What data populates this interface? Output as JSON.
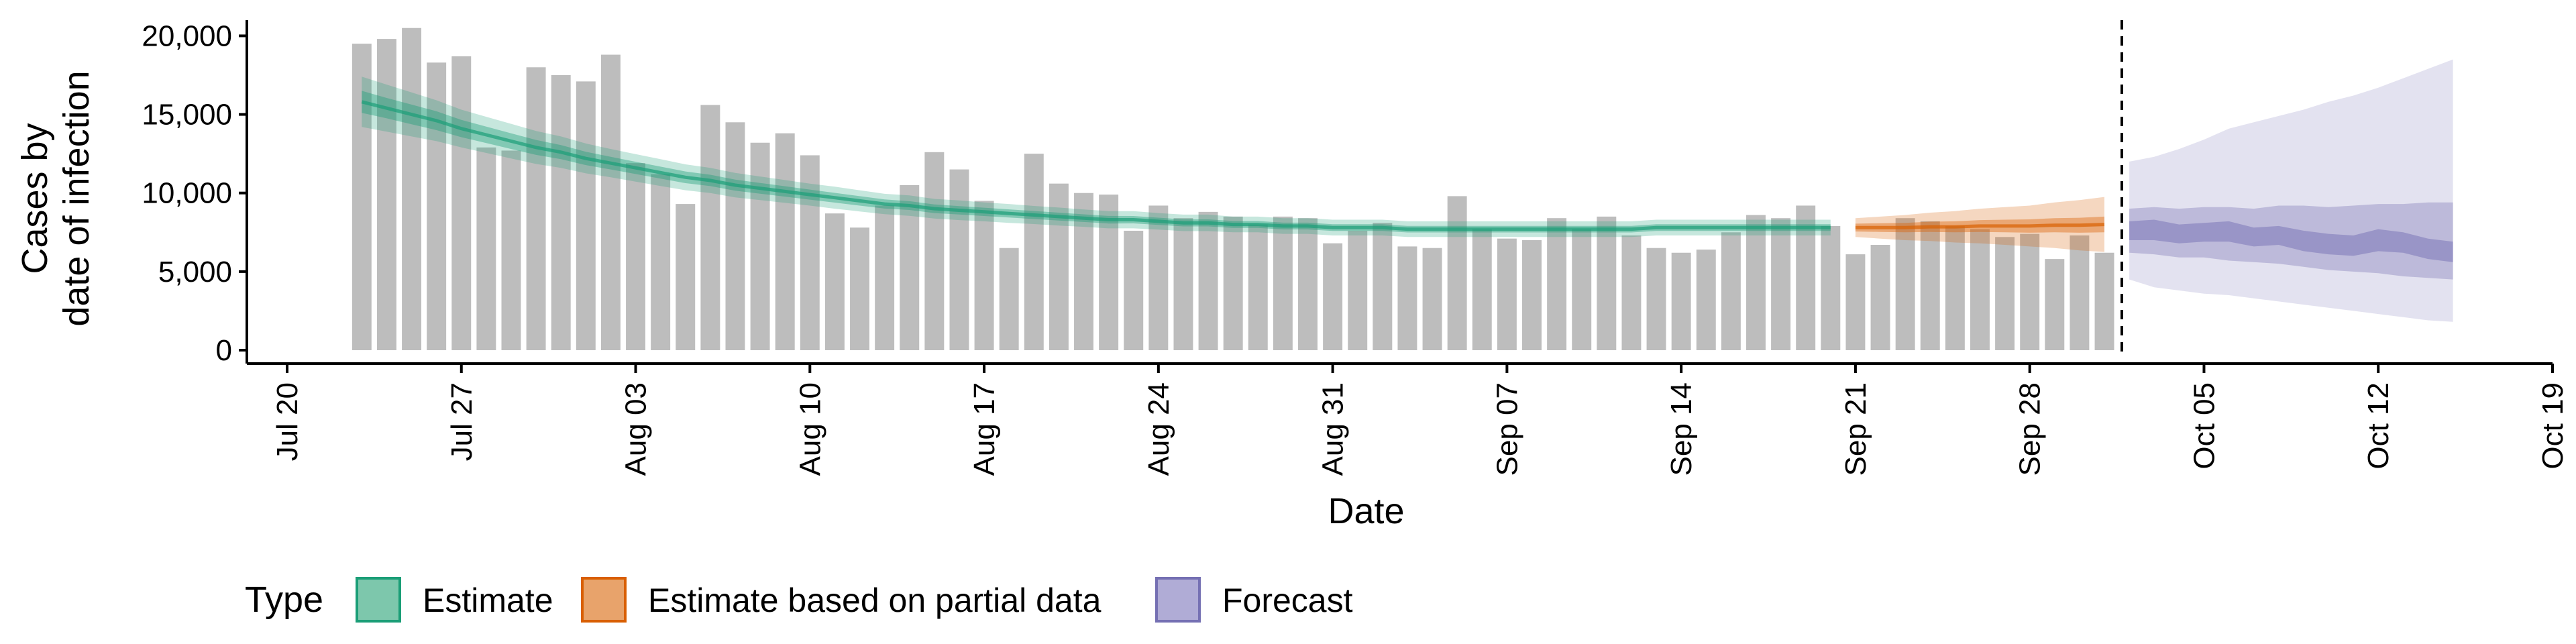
{
  "chart_data": {
    "type": "bar",
    "xlabel": "Date",
    "ylabel_lines": [
      "Cases by",
      "date of infection"
    ],
    "ylim": [
      0,
      21000
    ],
    "yticks": [
      0,
      5000,
      10000,
      15000,
      20000
    ],
    "ytick_labels": [
      "0",
      "5,000",
      "10,000",
      "15,000",
      "20,000"
    ],
    "x_tick_labels": [
      "Jul 20",
      "Jul 27",
      "Aug 03",
      "Aug 10",
      "Aug 17",
      "Aug 24",
      "Aug 31",
      "Sep 07",
      "Sep 14",
      "Sep 21",
      "Sep 28",
      "Oct 05",
      "Oct 12",
      "Oct 19"
    ],
    "x_start_date": "2020-07-20",
    "x_end_date": "2020-10-19",
    "forecast_start_date": "2020-10-02",
    "grid": false,
    "legend_position": "bottom-left",
    "legend": {
      "title": "Type",
      "items": [
        {
          "label": "Estimate",
          "fill": "#7dc7ac",
          "stroke": "#1b9e77"
        },
        {
          "label": "Estimate based on partial data",
          "fill": "#e8a36b",
          "stroke": "#d95f02"
        },
        {
          "label": "Forecast",
          "fill": "#b0acd6",
          "stroke": "#7570b3"
        }
      ]
    },
    "bar_color": "#bdbdbd",
    "reported_cases": {
      "start_date": "2020-07-23",
      "values": [
        19500,
        19800,
        20500,
        18300,
        18700,
        12900,
        12700,
        18000,
        17500,
        17100,
        18800,
        11900,
        11200,
        9300,
        15600,
        14500,
        13200,
        13800,
        12400,
        8700,
        7800,
        9200,
        10500,
        12600,
        11500,
        9500,
        6500,
        12500,
        10600,
        10000,
        9900,
        7600,
        9200,
        8400,
        8800,
        8500,
        8000,
        8500,
        8400,
        6800,
        7600,
        8100,
        6600,
        6500,
        9800,
        7700,
        7100,
        7000,
        8400,
        7700,
        8500,
        7300,
        6500,
        6200,
        6400,
        7500,
        8600,
        8400,
        9200,
        7900,
        6100,
        6700,
        8400,
        8200,
        7900,
        7700,
        7200,
        7400,
        5800,
        7300,
        6200
      ]
    },
    "series": [
      {
        "name": "Estimate",
        "color": "#1b9e77",
        "start_date": "2020-07-23",
        "end_date": "2020-09-20",
        "median": [
          15800,
          15400,
          15000,
          14600,
          14100,
          13700,
          13300,
          12900,
          12600,
          12200,
          11900,
          11600,
          11300,
          11000,
          10800,
          10500,
          10300,
          10100,
          9900,
          9700,
          9500,
          9300,
          9200,
          9000,
          8900,
          8800,
          8700,
          8600,
          8500,
          8400,
          8300,
          8300,
          8200,
          8100,
          8100,
          8000,
          8000,
          7900,
          7900,
          7800,
          7800,
          7800,
          7700,
          7700,
          7700,
          7700,
          7700,
          7700,
          7700,
          7700,
          7700,
          7700,
          7800,
          7800,
          7800,
          7800,
          7800,
          7800,
          7800,
          7800
        ],
        "band_width_outer": [
          3200,
          3000,
          2800,
          2600,
          2400,
          2300,
          2200,
          2100,
          2000,
          1900,
          1800,
          1750,
          1700,
          1650,
          1600,
          1550,
          1500,
          1450,
          1400,
          1400,
          1350,
          1300,
          1300,
          1250,
          1250,
          1200,
          1200,
          1150,
          1150,
          1100,
          1100,
          1100,
          1050,
          1050,
          1050,
          1000,
          1000,
          1000,
          1000,
          1000,
          1000,
          1000,
          1000,
          1000,
          1000,
          1000,
          1000,
          1000,
          1000,
          1000,
          1000,
          1000,
          1000,
          1000,
          1000,
          1000,
          1000,
          1000,
          1000,
          1000
        ],
        "band_width_inner": [
          1400,
          1300,
          1250,
          1200,
          1100,
          1050,
          1000,
          950,
          900,
          850,
          800,
          780,
          760,
          740,
          720,
          700,
          680,
          660,
          640,
          620,
          600,
          580,
          560,
          550,
          540,
          530,
          520,
          510,
          500,
          490,
          480,
          470,
          460,
          450,
          450,
          440,
          440,
          430,
          430,
          420,
          420,
          420,
          420,
          420,
          420,
          420,
          420,
          420,
          420,
          420,
          420,
          420,
          420,
          420,
          420,
          420,
          420,
          420,
          420,
          420
        ]
      },
      {
        "name": "Estimate based on partial data",
        "color": "#d95f02",
        "start_date": "2020-09-21",
        "end_date": "2020-10-01",
        "median": [
          7800,
          7800,
          7800,
          7850,
          7850,
          7900,
          7900,
          7900,
          7950,
          7950,
          8000
        ],
        "band_width_outer": [
          1200,
          1400,
          1600,
          1800,
          2000,
          2200,
          2400,
          2600,
          2900,
          3200,
          3500
        ],
        "band_width_inner": [
          500,
          550,
          600,
          650,
          700,
          750,
          800,
          850,
          900,
          950,
          1000
        ]
      },
      {
        "name": "Forecast",
        "color": "#7570b3",
        "start_date": "2020-10-02",
        "end_date": "2020-10-15",
        "median": [
          7500,
          7600,
          7300,
          7400,
          7500,
          7100,
          7200,
          6800,
          6600,
          6500,
          6900,
          6700,
          6300,
          6100
        ],
        "band_outer_lower": [
          4500,
          4000,
          3800,
          3600,
          3500,
          3300,
          3100,
          2900,
          2700,
          2500,
          2300,
          2100,
          1900,
          1800
        ],
        "band_outer_upper": [
          12000,
          12300,
          12800,
          13400,
          14100,
          14500,
          14900,
          15300,
          15800,
          16200,
          16700,
          17300,
          17900,
          18500
        ],
        "band_mid_lower": [
          6200,
          6100,
          5900,
          5900,
          5700,
          5600,
          5500,
          5300,
          5100,
          5000,
          4900,
          4700,
          4600,
          4500
        ],
        "band_mid_upper": [
          9000,
          9100,
          9000,
          9100,
          9100,
          9000,
          9200,
          9200,
          9100,
          9200,
          9300,
          9300,
          9400,
          9400
        ],
        "band_inner_lower": [
          7000,
          7000,
          6800,
          6900,
          6900,
          6600,
          6700,
          6300,
          6100,
          6000,
          6300,
          6200,
          5800,
          5600
        ],
        "band_inner_upper": [
          8200,
          8300,
          8000,
          8100,
          8200,
          7800,
          7900,
          7600,
          7400,
          7300,
          7700,
          7500,
          7100,
          6900
        ]
      }
    ]
  }
}
